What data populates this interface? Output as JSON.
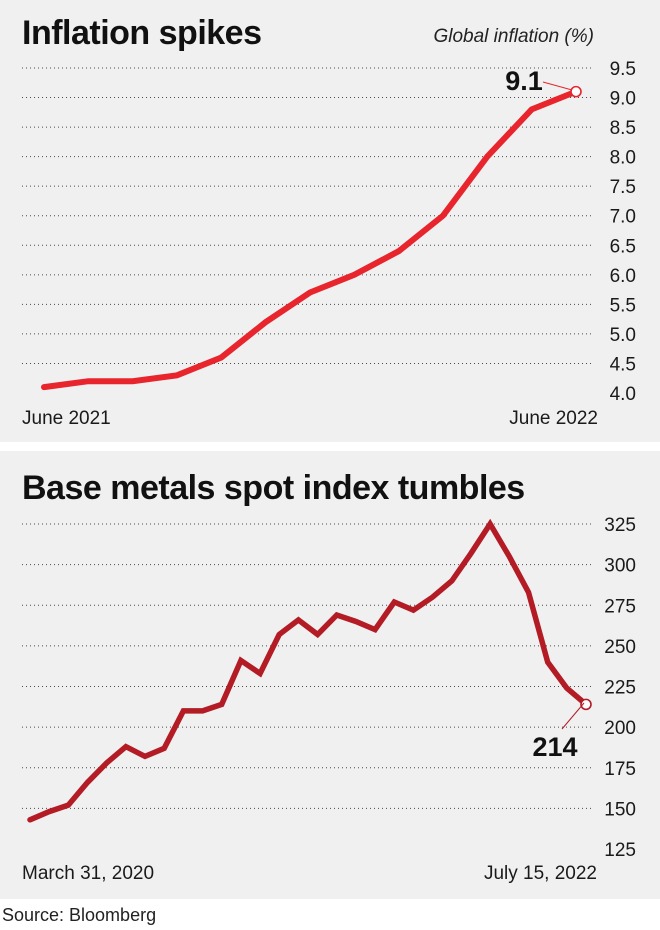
{
  "source": "Source: Bloomberg",
  "colors": {
    "panel_bg": "#f0f0f0",
    "grid": "#4a4a4a",
    "text": "#1a1a1a"
  },
  "chart_data": [
    {
      "type": "line",
      "title": "Inflation spikes",
      "ylabel": "Global inflation (%)",
      "x_start_label": "June 2021",
      "x_end_label": "June 2022",
      "ylim": [
        4.0,
        9.5
      ],
      "yticks": [
        "4.0",
        "4.5",
        "5.0",
        "5.5",
        "6.0",
        "6.5",
        "7.0",
        "7.5",
        "8.0",
        "8.5",
        "9.0",
        "9.5"
      ],
      "grid": true,
      "line_color": "#e8242d",
      "series": [
        {
          "values": [
            4.1,
            4.2,
            4.2,
            4.3,
            4.6,
            5.2,
            5.7,
            6.0,
            6.4,
            7.0,
            8.0,
            8.8,
            9.1
          ]
        }
      ],
      "annotation": "9.1"
    },
    {
      "type": "line",
      "title": "Base metals spot index tumbles",
      "x_start_label": "March 31, 2020",
      "x_end_label": "July 15, 2022",
      "ylim": [
        125,
        325
      ],
      "yticks": [
        "125",
        "150",
        "175",
        "200",
        "225",
        "250",
        "275",
        "300",
        "325"
      ],
      "grid": true,
      "line_color": "#b31b25",
      "series": [
        {
          "values": [
            143,
            148,
            152,
            166,
            178,
            188,
            182,
            187,
            210,
            210,
            214,
            241,
            233,
            257,
            266,
            257,
            269,
            265,
            260,
            277,
            272,
            280,
            290,
            307,
            325,
            305,
            283,
            240,
            224,
            214
          ]
        }
      ],
      "annotation": "214"
    }
  ]
}
